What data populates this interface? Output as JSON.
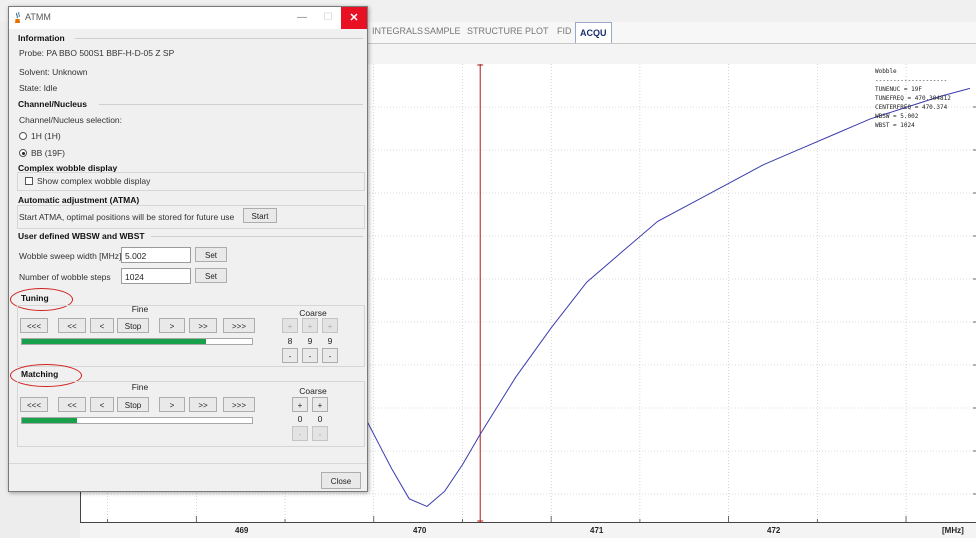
{
  "app": {
    "tabs": [
      "INTEGRALS",
      "SAMPLE",
      "STRUCTURE",
      "PLOT",
      "FID",
      "ACQU"
    ],
    "active_tab": "ACQU"
  },
  "plot": {
    "x_ticks": [
      "469",
      "470",
      "471",
      "472",
      "[MHz]"
    ],
    "wobble_info": {
      "title": "Wobble",
      "separator": "--------------------",
      "lines": [
        "TUNENUC = 19F",
        "TUNEFREQ = 470.304812",
        "CENTERFREQ = 470.374",
        "WBSW = 5.002",
        "WBST = 1024"
      ]
    }
  },
  "chart_data": {
    "type": "line",
    "xlabel": "[MHz]",
    "ylabel": "",
    "xlim": [
      468.35,
      473.4
    ],
    "x_ticks": [
      469,
      470,
      471,
      472
    ],
    "series": [
      {
        "x": [
          469.35,
          469.5,
          469.7,
          469.9,
          470.1,
          470.2,
          470.3,
          470.4,
          470.5,
          470.6,
          470.8,
          471.0,
          471.2,
          471.4,
          471.6,
          471.8,
          472.0,
          472.2,
          472.4,
          472.6,
          472.8,
          473.0,
          473.2,
          473.36
        ],
        "y": [
          0.76,
          0.64,
          0.46,
          0.3,
          0.12,
          0.04,
          0.02,
          0.06,
          0.13,
          0.21,
          0.36,
          0.49,
          0.61,
          0.69,
          0.77,
          0.82,
          0.87,
          0.92,
          0.96,
          1.0,
          1.04,
          1.07,
          1.1,
          1.12
        ]
      }
    ],
    "vertical_marker_x": 470.6,
    "grid": true,
    "grid_color": "#bbbbbb",
    "line_color": "#3b3bb0",
    "marker_color": "#b01818"
  },
  "dialog": {
    "title": "ATMM",
    "close_glyph": "✕",
    "min_glyph": "—",
    "max_glyph": "☐",
    "information": {
      "title": "Information",
      "probe": "Probe: PA BBO 500S1 BBF-H-D-05 Z SP",
      "solvent": "Solvent: Unknown",
      "state": "State: Idle"
    },
    "channel": {
      "title": "Channel/Nucleus",
      "label": "Channel/Nucleus selection:",
      "options": [
        "1H (1H)",
        "BB (19F)"
      ],
      "selected": "BB (19F)"
    },
    "complex": {
      "title": "Complex wobble display",
      "checkbox_label": "Show complex wobble display",
      "checked": false
    },
    "atma": {
      "title": "Automatic adjustment (ATMA)",
      "text": "Start ATMA, optimal positions will be stored for future use",
      "start_button": "Start"
    },
    "wbsw": {
      "title": "User defined WBSW and WBST",
      "sweep_label": "Wobble sweep width [MHz]",
      "sweep_value": "5.002",
      "steps_label": "Number of wobble steps",
      "steps_value": "1024",
      "set_button": "Set"
    },
    "tuning": {
      "title": "Tuning",
      "fine_label": "Fine",
      "coarse_label": "Coarse",
      "buttons": [
        "<<<",
        "<<",
        "<",
        "Stop",
        ">",
        ">>",
        ">>>"
      ],
      "progress": 0.8,
      "coarse_plus": [
        "+",
        "+",
        "+"
      ],
      "coarse_values": [
        "8",
        "9",
        "9"
      ],
      "coarse_minus": [
        "-",
        "-",
        "-"
      ]
    },
    "matching": {
      "title": "Matching",
      "fine_label": "Fine",
      "coarse_label": "Coarse",
      "buttons": [
        "<<<",
        "<<",
        "<",
        "Stop",
        ">",
        ">>",
        ">>>"
      ],
      "progress": 0.24,
      "coarse_plus": [
        "+",
        "+"
      ],
      "coarse_values": [
        "0",
        "0"
      ],
      "coarse_minus": [
        "-",
        "-"
      ]
    },
    "close_button": "Close",
    "highlight_color": "#d0221c",
    "progress_color": "#18a04a"
  }
}
